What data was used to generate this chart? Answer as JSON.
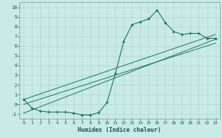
{
  "xlabel": "Humidex (Indice chaleur)",
  "bg_color": "#c8ebe8",
  "grid_color": "#b0d8d4",
  "line_color": "#1a6b5a",
  "xlim": [
    -0.5,
    23.5
  ],
  "ylim": [
    -1.5,
    10.5
  ],
  "xticks": [
    0,
    1,
    2,
    3,
    4,
    5,
    6,
    7,
    8,
    9,
    10,
    11,
    12,
    13,
    14,
    15,
    16,
    17,
    18,
    19,
    20,
    21,
    22,
    23
  ],
  "yticks": [
    -1,
    0,
    1,
    2,
    3,
    4,
    5,
    6,
    7,
    8,
    9,
    10
  ],
  "curve1_x": [
    0,
    1,
    2,
    3,
    4,
    5,
    6,
    7,
    8,
    9,
    10,
    11,
    12,
    13,
    14,
    15,
    16,
    17,
    18,
    19,
    20,
    21,
    22,
    23
  ],
  "curve1_y": [
    0.5,
    -0.4,
    -0.7,
    -0.8,
    -0.8,
    -0.8,
    -0.9,
    -1.1,
    -1.1,
    -0.85,
    0.2,
    3.2,
    6.5,
    8.2,
    8.5,
    8.8,
    9.7,
    8.4,
    7.5,
    7.2,
    7.3,
    7.3,
    6.8,
    6.8
  ],
  "line1_x": [
    0,
    23
  ],
  "line1_y": [
    0.5,
    7.2
  ],
  "line2_x": [
    0,
    23
  ],
  "line2_y": [
    -0.9,
    6.7
  ],
  "line3_x": [
    0,
    23
  ],
  "line3_y": [
    0.0,
    6.3
  ]
}
